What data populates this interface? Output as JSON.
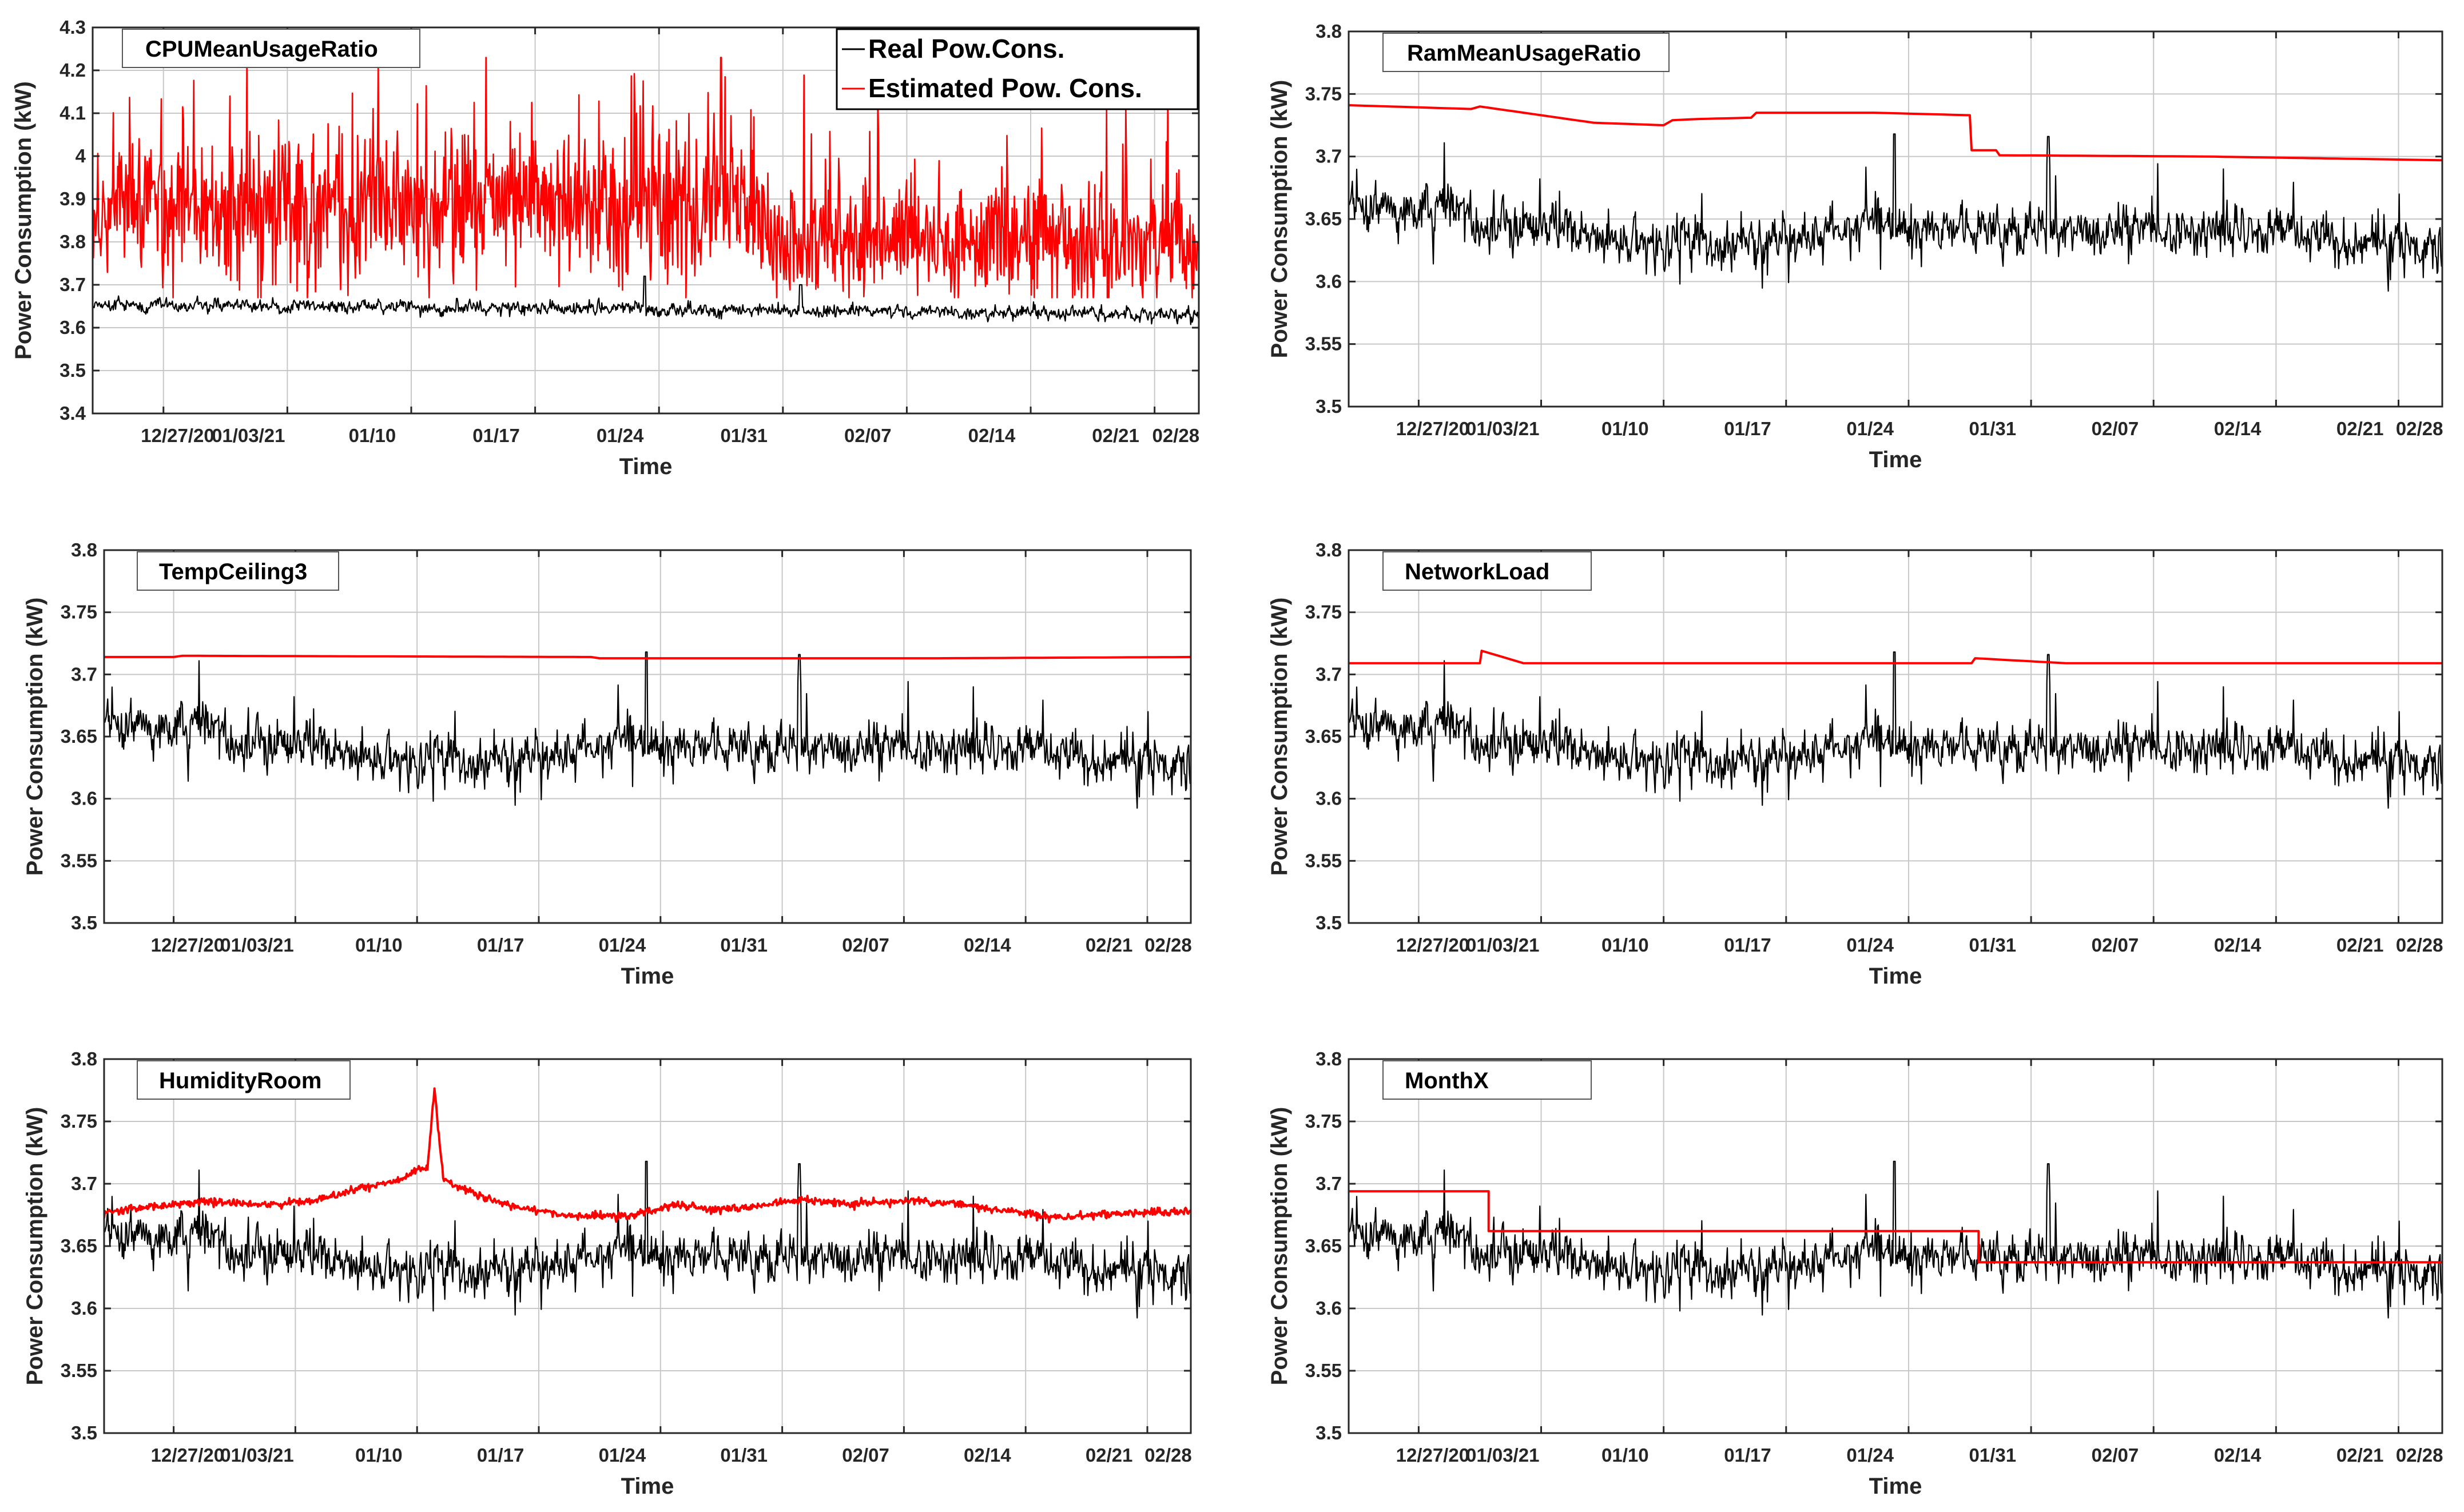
{
  "figure": {
    "colors": {
      "real": "#000000",
      "estimated": "#ff0000",
      "grid": "#c8c8c8",
      "axis": "#262626"
    },
    "legend": {
      "real_label": "Real Pow.Cons.",
      "estimated_label": "Estimated Pow. Cons.",
      "placement": "top-right of first panel"
    }
  },
  "chart_data": [
    {
      "type": "line",
      "title": "CPUMeanUsageRatio",
      "xlabel": "Time",
      "ylabel": "Power Consumption (kW)",
      "ylim": [
        3.4,
        4.3
      ],
      "yticks": [
        3.4,
        3.5,
        3.6,
        3.7,
        3.8,
        3.9,
        4.0,
        4.1,
        4.2,
        4.3
      ],
      "ytick_labels": [
        "3.4",
        "3.5",
        "3.6",
        "3.7",
        "3.8",
        "3.9",
        "4",
        "4.1",
        "4.2",
        "4.3"
      ],
      "xlim_days": [
        -4,
        58.5
      ],
      "xticks_days": [
        0,
        7,
        14,
        21,
        28,
        35,
        42,
        49,
        56,
        63
      ],
      "xtick_labels": [
        "12/27/20",
        "01/03/21",
        "01/10",
        "01/17",
        "01/24",
        "01/31",
        "02/07",
        "02/14",
        "02/21",
        "02/28"
      ],
      "grid": true,
      "legend": true,
      "series": [
        {
          "name": "Real Pow.Cons.",
          "level": 3.645,
          "noise": 0.012,
          "profile": "real-cpu"
        },
        {
          "name": "Estimated Pow. Cons.",
          "level": 3.87,
          "noise": 0.13,
          "profile": "est-cpu",
          "notes": "mean ~3.88 with peaks to 4.23 until 01/31, then ~3.80"
        }
      ]
    },
    {
      "type": "line",
      "title": "RamMeanUsageRatio",
      "xlabel": "Time",
      "ylabel": "Power Consumption (kW)",
      "ylim": [
        3.5,
        3.8
      ],
      "yticks": [
        3.5,
        3.55,
        3.6,
        3.65,
        3.7,
        3.75,
        3.8
      ],
      "ytick_labels": [
        "3.5",
        "3.55",
        "3.6",
        "3.65",
        "3.7",
        "3.75",
        "3.8"
      ],
      "xlim_days": [
        -4,
        58.5
      ],
      "xticks_days": [
        0,
        7,
        14,
        21,
        28,
        35,
        42,
        49,
        56,
        63
      ],
      "xtick_labels": [
        "12/27/20",
        "01/03/21",
        "01/10",
        "01/17",
        "01/24",
        "01/31",
        "02/07",
        "02/14",
        "02/21",
        "02/28"
      ],
      "grid": true,
      "legend": false,
      "series": [
        {
          "name": "Real Pow.Cons.",
          "profile": "real"
        },
        {
          "name": "Estimated Pow. Cons.",
          "profile": "piecewise",
          "points": [
            [
              -4,
              3.741
            ],
            [
              3,
              3.738
            ],
            [
              3.5,
              3.74
            ],
            [
              10,
              3.727
            ],
            [
              14,
              3.725
            ],
            [
              14.5,
              3.729
            ],
            [
              16,
              3.73
            ],
            [
              19,
              3.731
            ],
            [
              19.3,
              3.735
            ],
            [
              26,
              3.735
            ],
            [
              31.5,
              3.733
            ],
            [
              31.6,
              3.705
            ],
            [
              33,
              3.705
            ],
            [
              33.2,
              3.701
            ],
            [
              45,
              3.7
            ],
            [
              58.5,
              3.697
            ]
          ]
        }
      ]
    },
    {
      "type": "line",
      "title": "TempCeiling3",
      "xlabel": "Time",
      "ylabel": "Power Consumption (kW)",
      "ylim": [
        3.5,
        3.8
      ],
      "yticks": [
        3.5,
        3.55,
        3.6,
        3.65,
        3.7,
        3.75,
        3.8
      ],
      "ytick_labels": [
        "3.5",
        "3.55",
        "3.6",
        "3.65",
        "3.7",
        "3.75",
        "3.8"
      ],
      "xlim_days": [
        -4,
        58.5
      ],
      "xticks_days": [
        0,
        7,
        14,
        21,
        28,
        35,
        42,
        49,
        56,
        63
      ],
      "xtick_labels": [
        "12/27/20",
        "01/03/21",
        "01/10",
        "01/17",
        "01/24",
        "01/31",
        "02/07",
        "02/14",
        "02/21",
        "02/28"
      ],
      "grid": true,
      "legend": false,
      "series": [
        {
          "name": "Real Pow.Cons.",
          "profile": "real"
        },
        {
          "name": "Estimated Pow. Cons.",
          "profile": "piecewise",
          "points": [
            [
              -4,
              3.714
            ],
            [
              0,
              3.714
            ],
            [
              0.5,
              3.715
            ],
            [
              24,
              3.714
            ],
            [
              24.5,
              3.713
            ],
            [
              44,
              3.713
            ],
            [
              58.5,
              3.714
            ]
          ]
        }
      ]
    },
    {
      "type": "line",
      "title": "NetworkLoad",
      "xlabel": "Time",
      "ylabel": "Power Consumption (kW)",
      "ylim": [
        3.5,
        3.8
      ],
      "yticks": [
        3.5,
        3.55,
        3.6,
        3.65,
        3.7,
        3.75,
        3.8
      ],
      "ytick_labels": [
        "3.5",
        "3.55",
        "3.6",
        "3.65",
        "3.7",
        "3.75",
        "3.8"
      ],
      "xlim_days": [
        -4,
        58.5
      ],
      "xticks_days": [
        0,
        7,
        14,
        21,
        28,
        35,
        42,
        49,
        56,
        63
      ],
      "xtick_labels": [
        "12/27/20",
        "01/03/21",
        "01/10",
        "01/17",
        "01/24",
        "01/31",
        "02/07",
        "02/14",
        "02/21",
        "02/28"
      ],
      "grid": true,
      "legend": false,
      "series": [
        {
          "name": "Real Pow.Cons.",
          "profile": "real"
        },
        {
          "name": "Estimated Pow. Cons.",
          "profile": "piecewise",
          "points": [
            [
              -4,
              3.709
            ],
            [
              3.5,
              3.709
            ],
            [
              3.6,
              3.719
            ],
            [
              6,
              3.709
            ],
            [
              31.6,
              3.709
            ],
            [
              31.8,
              3.713
            ],
            [
              37,
              3.709
            ],
            [
              58.5,
              3.709
            ]
          ]
        }
      ]
    },
    {
      "type": "line",
      "title": "HumidityRoom",
      "xlabel": "Time",
      "ylabel": "Power Consumption (kW)",
      "ylim": [
        3.5,
        3.8
      ],
      "yticks": [
        3.5,
        3.55,
        3.6,
        3.65,
        3.7,
        3.75,
        3.8
      ],
      "ytick_labels": [
        "3.5",
        "3.55",
        "3.6",
        "3.65",
        "3.7",
        "3.75",
        "3.8"
      ],
      "xlim_days": [
        -4,
        58.5
      ],
      "xticks_days": [
        0,
        7,
        14,
        21,
        28,
        35,
        42,
        49,
        56,
        63
      ],
      "xtick_labels": [
        "12/27/20",
        "01/03/21",
        "01/10",
        "01/17",
        "01/24",
        "01/31",
        "02/07",
        "02/14",
        "02/21",
        "02/28"
      ],
      "grid": true,
      "legend": false,
      "series": [
        {
          "name": "Real Pow.Cons.",
          "profile": "real"
        },
        {
          "name": "Estimated Pow. Cons.",
          "profile": "smooth",
          "noise": 0.0015,
          "points": [
            [
              -4,
              3.677
            ],
            [
              -1,
              3.682
            ],
            [
              2,
              3.686
            ],
            [
              5,
              3.683
            ],
            [
              8,
              3.686
            ],
            [
              11,
              3.697
            ],
            [
              13,
              3.703
            ],
            [
              14,
              3.712
            ],
            [
              14.6,
              3.712
            ],
            [
              15,
              3.775
            ],
            [
              15.5,
              3.705
            ],
            [
              16.5,
              3.697
            ],
            [
              18,
              3.688
            ],
            [
              20,
              3.68
            ],
            [
              23,
              3.674
            ],
            [
              26,
              3.674
            ],
            [
              29,
              3.683
            ],
            [
              31,
              3.679
            ],
            [
              33,
              3.681
            ],
            [
              36,
              3.687
            ],
            [
              39,
              3.684
            ],
            [
              42,
              3.686
            ],
            [
              45,
              3.684
            ],
            [
              48,
              3.678
            ],
            [
              51,
              3.673
            ],
            [
              54,
              3.676
            ],
            [
              58.5,
              3.678
            ]
          ]
        }
      ]
    },
    {
      "type": "line",
      "title": "MonthX",
      "xlabel": "Time",
      "ylabel": "Power Consumption (kW)",
      "ylim": [
        3.5,
        3.8
      ],
      "yticks": [
        3.5,
        3.55,
        3.6,
        3.65,
        3.7,
        3.75,
        3.8
      ],
      "ytick_labels": [
        "3.5",
        "3.55",
        "3.6",
        "3.65",
        "3.7",
        "3.75",
        "3.8"
      ],
      "xlim_days": [
        -4,
        58.5
      ],
      "xticks_days": [
        0,
        7,
        14,
        21,
        28,
        35,
        42,
        49,
        56,
        63
      ],
      "xtick_labels": [
        "12/27/20",
        "01/03/21",
        "01/10",
        "01/17",
        "01/24",
        "01/31",
        "02/07",
        "02/14",
        "02/21",
        "02/28"
      ],
      "grid": true,
      "legend": false,
      "series": [
        {
          "name": "Real Pow.Cons.",
          "profile": "real"
        },
        {
          "name": "Estimated Pow. Cons.",
          "profile": "step",
          "points": [
            [
              -4,
              3.694
            ],
            [
              4,
              3.694
            ],
            [
              4,
              3.662
            ],
            [
              32,
              3.662
            ],
            [
              32,
              3.637
            ],
            [
              58.5,
              3.637
            ]
          ]
        }
      ]
    }
  ]
}
